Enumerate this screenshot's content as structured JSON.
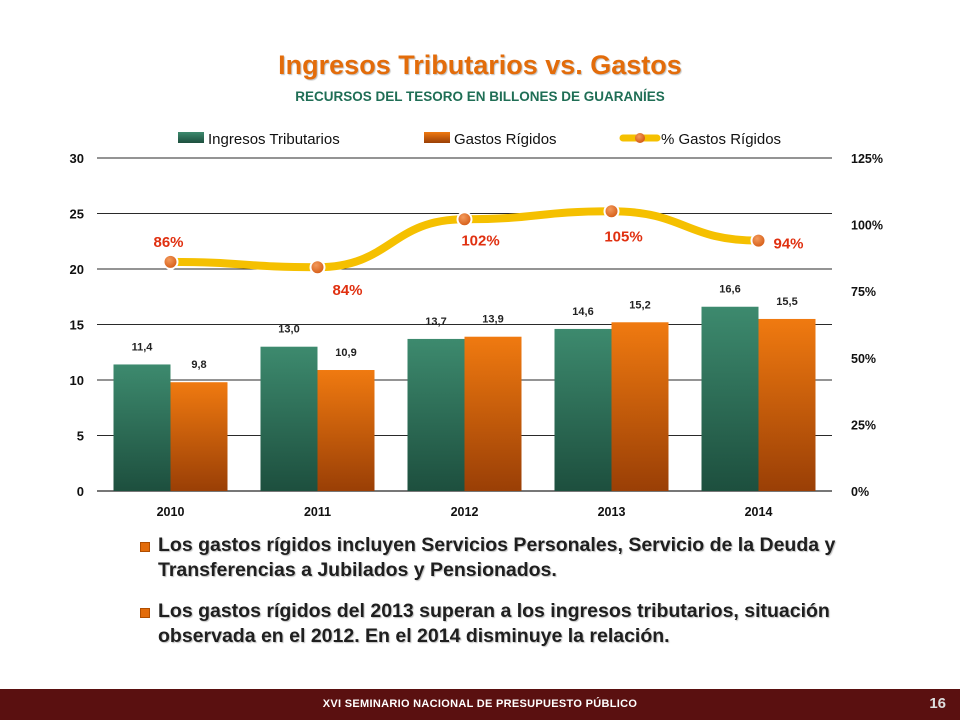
{
  "slide": {
    "title": "Ingresos Tributarios vs. Gastos",
    "subtitle": "RECURSOS DEL TESORO EN BILLONES DE GUARANÍES"
  },
  "chart_data": {
    "type": "bar",
    "categories": [
      "2010",
      "2011",
      "2012",
      "2013",
      "2014"
    ],
    "series": [
      {
        "name": "Ingresos Tributarios",
        "type": "bar",
        "axis": "left",
        "values": [
          11.4,
          13.0,
          13.7,
          14.6,
          16.6
        ],
        "labels": [
          "11,4",
          "13,0",
          "13,7",
          "14,6",
          "16,6"
        ],
        "color": "#2e7d62"
      },
      {
        "name": "Gastos Rígidos",
        "type": "bar",
        "axis": "left",
        "values": [
          9.8,
          10.9,
          13.9,
          15.2,
          15.5
        ],
        "labels": [
          "9,8",
          "10,9",
          "13,9",
          "15,2",
          "15,5"
        ],
        "color": "#e36c0a"
      },
      {
        "name": "% Gastos Rígidos",
        "type": "line",
        "axis": "right",
        "values": [
          86,
          84,
          102,
          105,
          94
        ],
        "labels": [
          "86%",
          "84%",
          "102%",
          "105%",
          "94%"
        ],
        "color": "#f5c000",
        "label_color": "#e03010"
      }
    ],
    "y_left": {
      "min": 0,
      "max": 30,
      "ticks": [
        "0",
        "5",
        "10",
        "15",
        "20",
        "25",
        "30"
      ]
    },
    "y_right": {
      "min": 0,
      "max": 125,
      "ticks": [
        "0%",
        "25%",
        "50%",
        "75%",
        "100%",
        "125%"
      ]
    },
    "grid": true,
    "legend_position": "top"
  },
  "bullets": [
    "Los gastos rígidos incluyen Servicios Personales, Servicio de la Deuda y Transferencias a Jubilados y Pensionados.",
    "Los gastos rígidos del 2013 superan a los ingresos tributarios, situación observada en el 2012. En el 2014 disminuye la relación."
  ],
  "footer": {
    "text": "XVI SEMINARIO NACIONAL DE PRESUPUESTO PÚBLICO",
    "page_number": "16"
  },
  "colors": {
    "title": "#e36c0a",
    "subtitle": "#1f6e55",
    "footer_bg": "#5a1010"
  }
}
